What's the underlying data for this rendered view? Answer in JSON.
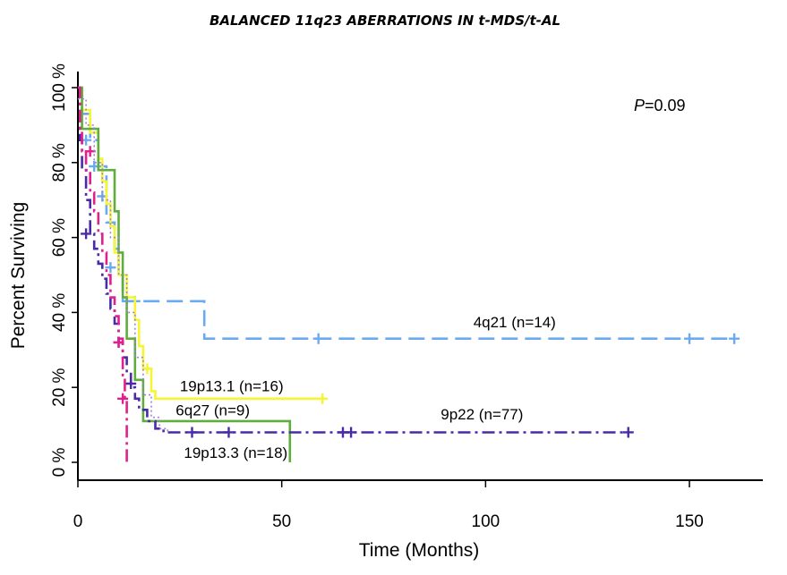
{
  "chart_data": {
    "type": "line",
    "title": "BALANCED 11q23 ABERRATIONS IN t-MDS/t-AL",
    "xlabel": "Time (Months)",
    "ylabel": "Percent Surviving",
    "xlim": [
      0,
      168
    ],
    "ylim": [
      0,
      100
    ],
    "x_ticks": [
      "0",
      "50",
      "100",
      "150"
    ],
    "y_ticks": [
      "0 %",
      "20 %",
      "40 %",
      "60 %",
      "80 %",
      "100 %"
    ],
    "p_value": {
      "prefix": "P",
      "text": "=0.09"
    },
    "grid": false,
    "series": [
      {
        "name": "4q21 (n=14)",
        "color": "#6aaaf0",
        "dash": "dashed",
        "points": [
          [
            0,
            100
          ],
          [
            1,
            93
          ],
          [
            3,
            86
          ],
          [
            5,
            79
          ],
          [
            7,
            64
          ],
          [
            9,
            57
          ],
          [
            10,
            50
          ],
          [
            11,
            43
          ],
          [
            31,
            43
          ],
          [
            31,
            33
          ],
          [
            161,
            33
          ]
        ],
        "censored": [
          [
            2,
            86
          ],
          [
            4,
            79
          ],
          [
            6,
            71
          ],
          [
            8,
            52
          ],
          [
            14,
            43
          ],
          [
            59,
            33
          ],
          [
            150,
            33
          ],
          [
            161,
            33
          ]
        ]
      },
      {
        "name": "19p13.1 (n=16)",
        "color": "#f5f532",
        "dash": "solid",
        "points": [
          [
            0,
            100
          ],
          [
            1,
            94
          ],
          [
            3,
            88
          ],
          [
            5,
            81
          ],
          [
            6,
            75
          ],
          [
            7,
            69
          ],
          [
            8,
            63
          ],
          [
            9,
            56
          ],
          [
            10,
            50
          ],
          [
            12,
            44
          ],
          [
            14,
            38
          ],
          [
            15,
            31
          ],
          [
            16,
            25
          ],
          [
            18,
            19
          ],
          [
            19,
            17
          ],
          [
            60,
            17
          ]
        ],
        "censored": [
          [
            17,
            25
          ],
          [
            60,
            17
          ]
        ]
      },
      {
        "name": "6q27 (n=9)",
        "color": "#5fae3c",
        "dash": "solid",
        "points": [
          [
            0,
            100
          ],
          [
            1,
            89
          ],
          [
            5,
            89
          ],
          [
            5,
            78
          ],
          [
            8,
            78
          ],
          [
            9,
            67
          ],
          [
            10,
            56
          ],
          [
            11,
            44
          ],
          [
            12,
            33
          ],
          [
            14,
            22
          ],
          [
            16,
            11
          ],
          [
            52,
            11
          ],
          [
            52,
            0
          ]
        ],
        "censored": []
      },
      {
        "name": "9p22 (n=77)",
        "color": "#4a2aa8",
        "dash": "dashdot",
        "points": [
          [
            0,
            100
          ],
          [
            0.5,
            86
          ],
          [
            1,
            78
          ],
          [
            2,
            70
          ],
          [
            3,
            61
          ],
          [
            4,
            57
          ],
          [
            5,
            53
          ],
          [
            6,
            49
          ],
          [
            7,
            45
          ],
          [
            8,
            41
          ],
          [
            9,
            37
          ],
          [
            10,
            32
          ],
          [
            11,
            28
          ],
          [
            12,
            24
          ],
          [
            13,
            20
          ],
          [
            14,
            17
          ],
          [
            15,
            14
          ],
          [
            17,
            11
          ],
          [
            19,
            9
          ],
          [
            21,
            8
          ],
          [
            135,
            8
          ]
        ],
        "censored": [
          [
            2,
            61
          ],
          [
            10,
            32
          ],
          [
            13,
            21
          ],
          [
            28,
            8
          ],
          [
            37,
            8
          ],
          [
            65,
            8
          ],
          [
            67,
            8
          ],
          [
            135,
            8
          ]
        ]
      },
      {
        "name": "19p13.3 (n=18)",
        "color": "#e0208c",
        "dash": "dashdot",
        "points": [
          [
            0,
            100
          ],
          [
            0.5,
            89
          ],
          [
            1,
            83
          ],
          [
            2,
            78
          ],
          [
            3,
            72
          ],
          [
            4,
            67
          ],
          [
            5,
            61
          ],
          [
            6,
            56
          ],
          [
            7,
            50
          ],
          [
            8,
            44
          ],
          [
            9,
            39
          ],
          [
            10,
            33
          ],
          [
            11,
            22
          ],
          [
            11.5,
            17
          ],
          [
            12,
            6
          ],
          [
            12,
            0
          ]
        ],
        "censored": [
          [
            3,
            83
          ],
          [
            10,
            32
          ],
          [
            11,
            17
          ]
        ]
      },
      {
        "name": "",
        "color": "#a080d8",
        "dash": "dotted",
        "points": [
          [
            0,
            97
          ],
          [
            2,
            90
          ],
          [
            4,
            80
          ],
          [
            6,
            70
          ],
          [
            8,
            60
          ],
          [
            10,
            50
          ],
          [
            12,
            40
          ],
          [
            14,
            28
          ],
          [
            16,
            18
          ],
          [
            18,
            12
          ],
          [
            20,
            9
          ],
          [
            22,
            8
          ]
        ],
        "censored": []
      }
    ],
    "labels": [
      {
        "text": "4q21 (n=14)",
        "x": 97,
        "y": 36
      },
      {
        "text": "19p13.1 (n=16)",
        "x": 25,
        "y": 19
      },
      {
        "text": "6q27 (n=9)",
        "x": 24,
        "y": 12.5
      },
      {
        "text": "9p22 (n=77)",
        "x": 89,
        "y": 11.5
      },
      {
        "text": "19p13.3 (n=18)",
        "x": 26,
        "y": 1.2
      }
    ]
  }
}
